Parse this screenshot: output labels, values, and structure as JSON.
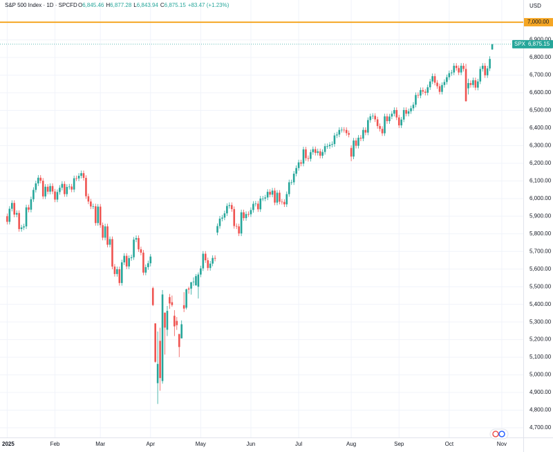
{
  "chart_data": {
    "type": "candlestick",
    "title": "S&P 500 Index · 1D · SPCFD",
    "ohlc_header": [
      {
        "key": "O",
        "label": "6,845.46"
      },
      {
        "key": "H",
        "label": "6,877.28"
      },
      {
        "key": "L",
        "label": "6,843.94"
      },
      {
        "key": "C",
        "label": "6,875.15"
      }
    ],
    "change_label": "+83.47 (+1.23%)",
    "currency": "USD",
    "up_color": "#26a69a",
    "down_color": "#ef5350",
    "grid": true,
    "xlim": [
      -3,
      216
    ],
    "ylim": [
      4645,
      7126
    ],
    "xticks": [
      {
        "value": 0,
        "label": "2025"
      },
      {
        "value": 20,
        "label": "Feb"
      },
      {
        "value": 39,
        "label": "Mar"
      },
      {
        "value": 60,
        "label": "Apr"
      },
      {
        "value": 81,
        "label": "May"
      },
      {
        "value": 102,
        "label": "Jun"
      },
      {
        "value": 122,
        "label": "Jul"
      },
      {
        "value": 144,
        "label": "Aug"
      },
      {
        "value": 164,
        "label": "Sep"
      },
      {
        "value": 185,
        "label": "Oct"
      },
      {
        "value": 207,
        "label": "Nov"
      }
    ],
    "yticks": [
      {
        "value": 4700,
        "label": "4,700.00"
      },
      {
        "value": 4800,
        "label": "4,800.00"
      },
      {
        "value": 4900,
        "label": "4,900.00"
      },
      {
        "value": 5000,
        "label": "5,000.00"
      },
      {
        "value": 5100,
        "label": "5,100.00"
      },
      {
        "value": 5200,
        "label": "5,200.00"
      },
      {
        "value": 5300,
        "label": "5,300.00"
      },
      {
        "value": 5400,
        "label": "5,400.00"
      },
      {
        "value": 5500,
        "label": "5,500.00"
      },
      {
        "value": 5600,
        "label": "5,600.00"
      },
      {
        "value": 5700,
        "label": "5,700.00"
      },
      {
        "value": 5800,
        "label": "5,800.00"
      },
      {
        "value": 5900,
        "label": "5,900.00"
      },
      {
        "value": 6000,
        "label": "6,000.00"
      },
      {
        "value": 6100,
        "label": "6,100.00"
      },
      {
        "value": 6200,
        "label": "6,200.00"
      },
      {
        "value": 6300,
        "label": "6,300.00"
      },
      {
        "value": 6400,
        "label": "6,400.00"
      },
      {
        "value": 6500,
        "label": "6,500.00"
      },
      {
        "value": 6600,
        "label": "6,600.00"
      },
      {
        "value": 6700,
        "label": "6,700.00"
      },
      {
        "value": 6800,
        "label": "6,800.00"
      },
      {
        "value": 6900,
        "label": "6,900.00"
      }
    ],
    "hline": {
      "value": 7000,
      "label": "7,000.00",
      "color": "#f5a623"
    },
    "price_label": {
      "name": "SPX",
      "value": 6875.15,
      "label": "6,875.15"
    },
    "open": [
      5900,
      5868,
      5942,
      5975,
      5909,
      5918,
      5827,
      5836,
      5842,
      5950,
      5937,
      5996,
      6049,
      6086,
      6118,
      6101,
      6012,
      6067,
      6039,
      6071,
      6040,
      5994,
      6037,
      6061,
      6083,
      6025,
      6066,
      6068,
      6051,
      6115,
      6114,
      6129,
      6144,
      6117,
      6013,
      5983,
      5955,
      5956,
      5861,
      5954,
      5849,
      5778,
      5842,
      5738,
      5770,
      5614,
      5572,
      5599,
      5521,
      5638,
      5675,
      5615,
      5662,
      5667,
      5767,
      5776,
      5712,
      5693,
      5580,
      5611,
      5633,
      5492,
      5292,
      4953,
      5193,
      4965,
      5353,
      5256,
      5441,
      5412,
      5335,
      5306,
      5232,
      5207,
      5395,
      5381,
      5490,
      5489,
      5529,
      5508,
      5500,
      5569,
      5604,
      5687,
      5650,
      5606,
      5631,
      5663,
      5807,
      5844,
      5886,
      5892,
      5916,
      5958,
      5963,
      5940,
      5844,
      5842,
      5802,
      5922,
      5889,
      5912,
      5911,
      5935,
      5970,
      5971,
      5939,
      6000,
      6000,
      6006,
      6038,
      6022,
      6045,
      5977,
      6033,
      5982,
      5981,
      5967,
      6025,
      6092,
      6092,
      6141,
      6173,
      6205,
      6198,
      6279,
      6229,
      6225,
      6263,
      6280,
      6259,
      6268,
      6243,
      6264,
      6297,
      6297,
      6305,
      6309,
      6358,
      6363,
      6389,
      6390,
      6389,
      6371,
      6287,
      6238,
      6329,
      6299,
      6345,
      6340,
      6389,
      6374,
      6445,
      6466,
      6469,
      6449,
      6411,
      6395,
      6370,
      6466,
      6439,
      6465,
      6481,
      6502,
      6460,
      6415,
      6448,
      6502,
      6481,
      6495,
      6512,
      6532,
      6587,
      6584,
      6615,
      6606,
      6600,
      6631,
      6664,
      6694,
      6657,
      6637,
      6605,
      6644,
      6661,
      6688,
      6711,
      6715,
      6753,
      6740,
      6715,
      6753,
      6735,
      6625,
      6655,
      6644,
      6671,
      6629,
      6664,
      6735,
      6753,
      6699,
      6738,
      6845.46
    ],
    "high": [
      5915,
      5957,
      5990,
      5990,
      5933,
      5933,
      5851,
      5857,
      5965,
      5965,
      6011,
      6064,
      6101,
      6133,
      6133,
      6116,
      6082,
      6082,
      6086,
      6086,
      6055,
      6052,
      6076,
      6098,
      6098,
      6081,
      6083,
      6083,
      6130,
      6130,
      6144,
      6159,
      6159,
      6132,
      6028,
      5998,
      5971,
      5971,
      5969,
      5969,
      5864,
      5857,
      5857,
      5785,
      5785,
      5629,
      5614,
      5614,
      5653,
      5690,
      5690,
      5677,
      5682,
      5782,
      5791,
      5791,
      5727,
      5708,
      5626,
      5648,
      5685,
      5500,
      5292,
      5246,
      5267,
      5481,
      5353,
      5391,
      5459,
      5450,
      5367,
      5328,
      5232,
      5309,
      5469,
      5489,
      5500,
      5528,
      5553,
      5572,
      5581,
      5619,
      5702,
      5702,
      5665,
      5646,
      5678,
      5678,
      5859,
      5901,
      5907,
      5931,
      5973,
      5978,
      5978,
      5955,
      5859,
      5857,
      5937,
      5937,
      5927,
      5927,
      5950,
      5985,
      5986,
      5986,
      6015,
      6015,
      6021,
      6053,
      6053,
      6060,
      6060,
      6048,
      6048,
      5997,
      5996,
      6040,
      6107,
      6107,
      6156,
      6188,
      6220,
      6220,
      6294,
      6294,
      6244,
      6278,
      6295,
      6295,
      6283,
      6283,
      6279,
      6312,
      6312,
      6320,
      6324,
      6373,
      6378,
      6404,
      6405,
      6405,
      6404,
      6386,
      6302,
      6344,
      6344,
      6360,
      6360,
      6404,
      6404,
      6460,
      6481,
      6484,
      6484,
      6464,
      6426,
      6410,
      6481,
      6481,
      6480,
      6496,
      6517,
      6517,
      6475,
      6463,
      6517,
      6517,
      6510,
      6527,
      6547,
      6602,
      6602,
      6630,
      6630,
      6621,
      6646,
      6679,
      6709,
      6709,
      6672,
      6652,
      6659,
      6676,
      6703,
      6726,
      6730,
      6768,
      6768,
      6755,
      6768,
      6768,
      6764,
      6680,
      6670,
      6686,
      6686,
      6679,
      6750,
      6768,
      6768,
      6753,
      6807,
      6877.28
    ],
    "low": [
      5853,
      5853,
      5927,
      5894,
      5894,
      5812,
      5812,
      5821,
      5827,
      5922,
      5922,
      5981,
      6034,
      6071,
      6086,
      5997,
      5997,
      6024,
      6024,
      6025,
      5979,
      5979,
      6022,
      6046,
      6010,
      6010,
      6051,
      6036,
      6036,
      6099,
      6099,
      6114,
      6102,
      5998,
      5968,
      5940,
      5940,
      5846,
      5846,
      5834,
      5763,
      5763,
      5723,
      5723,
      5599,
      5557,
      5557,
      5506,
      5506,
      5623,
      5600,
      5600,
      5647,
      5652,
      5752,
      5697,
      5678,
      5565,
      5565,
      5596,
      5615,
      5390,
      5069,
      4835,
      4910,
      4950,
      5115,
      5220,
      5374,
      5386,
      5220,
      5255,
      5101,
      5207,
      5356,
      5371,
      5460,
      5455,
      5505,
      5505,
      5433,
      5554,
      5589,
      5635,
      5591,
      5591,
      5616,
      5644,
      5792,
      5829,
      5871,
      5877,
      5901,
      5943,
      5925,
      5829,
      5827,
      5787,
      5787,
      5874,
      5874,
      5896,
      5896,
      5920,
      5955,
      5924,
      5924,
      5985,
      5985,
      5991,
      6007,
      6007,
      5962,
      5962,
      5967,
      5966,
      5952,
      5952,
      6010,
      6077,
      6077,
      6126,
      6158,
      6183,
      6183,
      6214,
      6210,
      6210,
      6248,
      6244,
      6244,
      6228,
      6228,
      6249,
      6282,
      6282,
      6290,
      6294,
      6343,
      6348,
      6374,
      6374,
      6356,
      6347,
      6212,
      6223,
      6284,
      6284,
      6325,
      6325,
      6359,
      6359,
      6430,
      6451,
      6434,
      6396,
      6380,
      6355,
      6355,
      6424,
      6424,
      6450,
      6466,
      6445,
      6400,
      6400,
      6433,
      6466,
      6466,
      6480,
      6497,
      6517,
      6569,
      6569,
      6591,
      6585,
      6585,
      6616,
      6649,
      6642,
      6622,
      6590,
      6590,
      6629,
      6646,
      6673,
      6696,
      6700,
      6725,
      6700,
      6700,
      6720,
      6550,
      6590,
      6629,
      6629,
      6614,
      6614,
      6649,
      6720,
      6684,
      6684,
      6723,
      6843.94
    ],
    "close": [
      5868,
      5942,
      5975,
      5909,
      5918,
      5827,
      5836,
      5842,
      5950,
      5937,
      5996,
      6049,
      6086,
      6118,
      6101,
      6012,
      6067,
      6039,
      6071,
      6040,
      5994,
      6037,
      6061,
      6083,
      6025,
      6066,
      6068,
      6051,
      6115,
      6114,
      6129,
      6144,
      6117,
      6013,
      5983,
      5955,
      5956,
      5861,
      5954,
      5849,
      5778,
      5842,
      5738,
      5770,
      5614,
      5572,
      5599,
      5521,
      5638,
      5675,
      5615,
      5662,
      5667,
      5767,
      5776,
      5712,
      5693,
      5580,
      5611,
      5633,
      5671,
      5396,
      5074,
      5062,
      4982,
      5456,
      5268,
      5363,
      5405,
      5396,
      5275,
      5282,
      5158,
      5287,
      5376,
      5485,
      5484,
      5525,
      5529,
      5560,
      5569,
      5604,
      5687,
      5650,
      5606,
      5631,
      5663,
      5659,
      5844,
      5886,
      5892,
      5916,
      5958,
      5963,
      5940,
      5844,
      5842,
      5802,
      5922,
      5889,
      5912,
      5911,
      5935,
      5970,
      5971,
      5939,
      6000,
      6000,
      6006,
      6038,
      6022,
      6045,
      5977,
      6033,
      5982,
      5981,
      5967,
      6025,
      6092,
      6092,
      6141,
      6173,
      6205,
      6198,
      6279,
      6229,
      6225,
      6263,
      6280,
      6259,
      6268,
      6243,
      6264,
      6297,
      6297,
      6305,
      6309,
      6358,
      6363,
      6389,
      6390,
      6389,
      6371,
      6362,
      6238,
      6329,
      6299,
      6345,
      6340,
      6389,
      6374,
      6445,
      6466,
      6469,
      6449,
      6411,
      6395,
      6370,
      6466,
      6439,
      6465,
      6481,
      6502,
      6460,
      6415,
      6448,
      6502,
      6481,
      6495,
      6512,
      6532,
      6587,
      6584,
      6615,
      6606,
      6600,
      6631,
      6664,
      6694,
      6657,
      6637,
      6605,
      6644,
      6661,
      6688,
      6711,
      6715,
      6753,
      6740,
      6715,
      6753,
      6735,
      6552,
      6655,
      6644,
      6671,
      6629,
      6664,
      6735,
      6753,
      6699,
      6738,
      6791.68,
      6875.15
    ]
  }
}
